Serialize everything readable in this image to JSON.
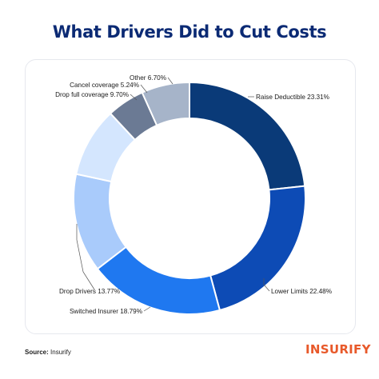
{
  "header": {
    "title": "What Drivers Did to Cut Costs"
  },
  "footer": {
    "source_label": "Source:",
    "source_value": "Insurify",
    "logo_text": "INSURIFY"
  },
  "colors": {
    "title": "#0b2a74",
    "logo": "#e8592a"
  },
  "chart_data": {
    "type": "pie",
    "donut": true,
    "title": "What Drivers Did to Cut Costs",
    "labels": [
      "Raise Deductible",
      "Lower Limits",
      "Switched Insurer",
      "Drop Drivers",
      "Drop full coverage",
      "Cancel coverage",
      "Other"
    ],
    "display_labels": [
      "Raise Deductible 23.31%",
      "Lower Limits 22.48%",
      "Switched Insurer 18.79%",
      "Drop Drivers 13.77%",
      "Drop full coverage 9.70%",
      "Cancel coverage 5.24%",
      "Other 6.70%"
    ],
    "values": [
      23.31,
      22.48,
      18.79,
      13.77,
      9.7,
      5.24,
      6.7
    ],
    "colors": [
      "#0a3a78",
      "#0d4bb5",
      "#1f78f0",
      "#a9cbfb",
      "#d4e6fe",
      "#6b7a94",
      "#a6b4c9"
    ]
  }
}
